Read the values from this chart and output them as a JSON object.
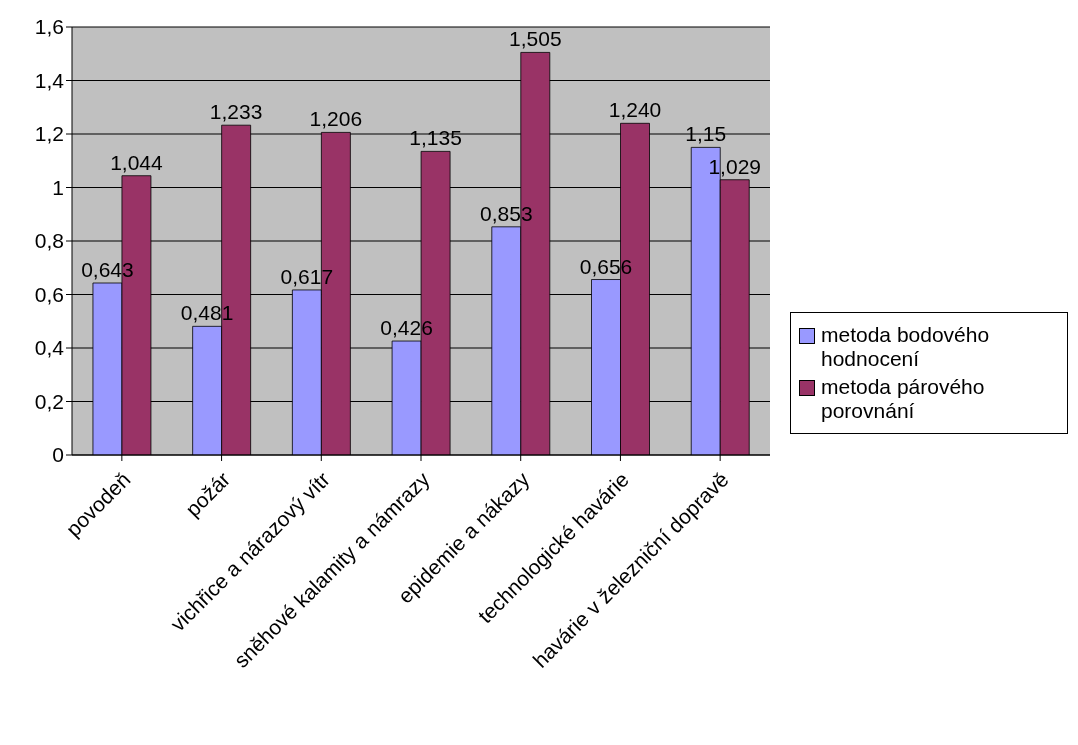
{
  "chart_data": {
    "type": "bar",
    "categories": [
      "povodeň",
      "požár",
      "vichřice a nárazový vítr",
      "sněhové kalamity a námrazy",
      "epidemie a nákazy",
      "technologické havárie",
      "havárie v železniční dopravě"
    ],
    "series": [
      {
        "name": "metoda bodového hodnocení",
        "color": "#9999ff",
        "values": [
          0.643,
          0.481,
          0.617,
          0.426,
          0.853,
          0.656,
          1.15
        ],
        "value_labels": [
          "0,643",
          "0,481",
          "0,617",
          "0,426",
          "0,853",
          "0,656",
          "1,15"
        ]
      },
      {
        "name": "metoda párového porovnání",
        "color": "#993366",
        "values": [
          1.044,
          1.233,
          1.206,
          1.135,
          1.505,
          1.24,
          1.029
        ],
        "value_labels": [
          "1,044",
          "1,233",
          "1,206",
          "1,135",
          "1,505",
          "1,240",
          "1,029"
        ]
      }
    ],
    "ylim": [
      0,
      1.6
    ],
    "yticks": [
      0,
      {
        "value": 0.2,
        "label": "0,2"
      },
      {
        "value": 0.4,
        "label": "0,4"
      },
      {
        "value": 0.6,
        "label": "0,6"
      },
      {
        "value": 0.8,
        "label": "0,8"
      },
      1,
      {
        "value": 1.2,
        "label": "1,2"
      },
      {
        "value": 1.4,
        "label": "1,4"
      },
      {
        "value": 1.6,
        "label": "1,6"
      }
    ],
    "grid": "y",
    "legend": "right"
  }
}
